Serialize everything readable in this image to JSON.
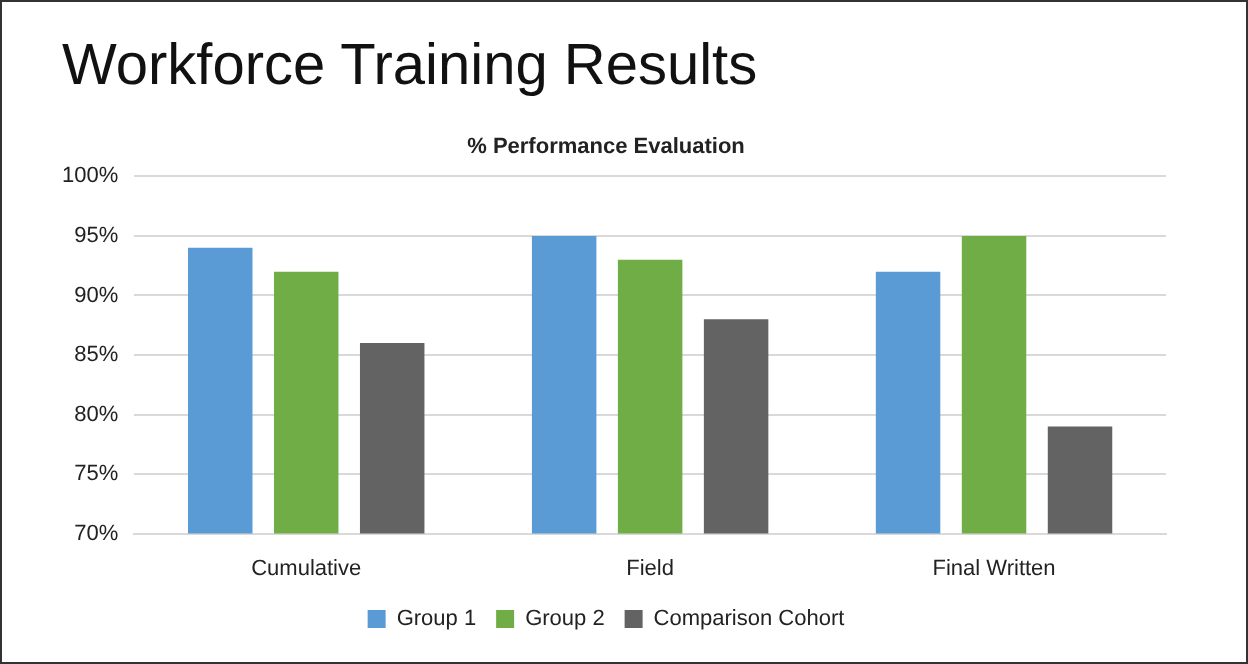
{
  "chart_data": {
    "type": "bar",
    "title": "Workforce Training Results",
    "subtitle": "% Performance Evaluation",
    "categories": [
      "Cumulative",
      "Field",
      "Final Written"
    ],
    "series": [
      {
        "name": "Group 1",
        "color": "#5b9bd5",
        "values": [
          94,
          95,
          92
        ]
      },
      {
        "name": "Group 2",
        "color": "#70ad47",
        "values": [
          92,
          93,
          95
        ]
      },
      {
        "name": "Comparison Cohort",
        "color": "#636363",
        "values": [
          86,
          88,
          79
        ]
      }
    ],
    "ylim": [
      70,
      100
    ],
    "yticks": [
      {
        "value": 70,
        "label": "70%"
      },
      {
        "value": 75,
        "label": "75%"
      },
      {
        "value": 80,
        "label": "80%"
      },
      {
        "value": 85,
        "label": "85%"
      },
      {
        "value": 90,
        "label": "90%"
      },
      {
        "value": 95,
        "label": "95%"
      },
      {
        "value": 100,
        "label": "100%"
      }
    ],
    "grid": "y",
    "legend": "bottom"
  }
}
